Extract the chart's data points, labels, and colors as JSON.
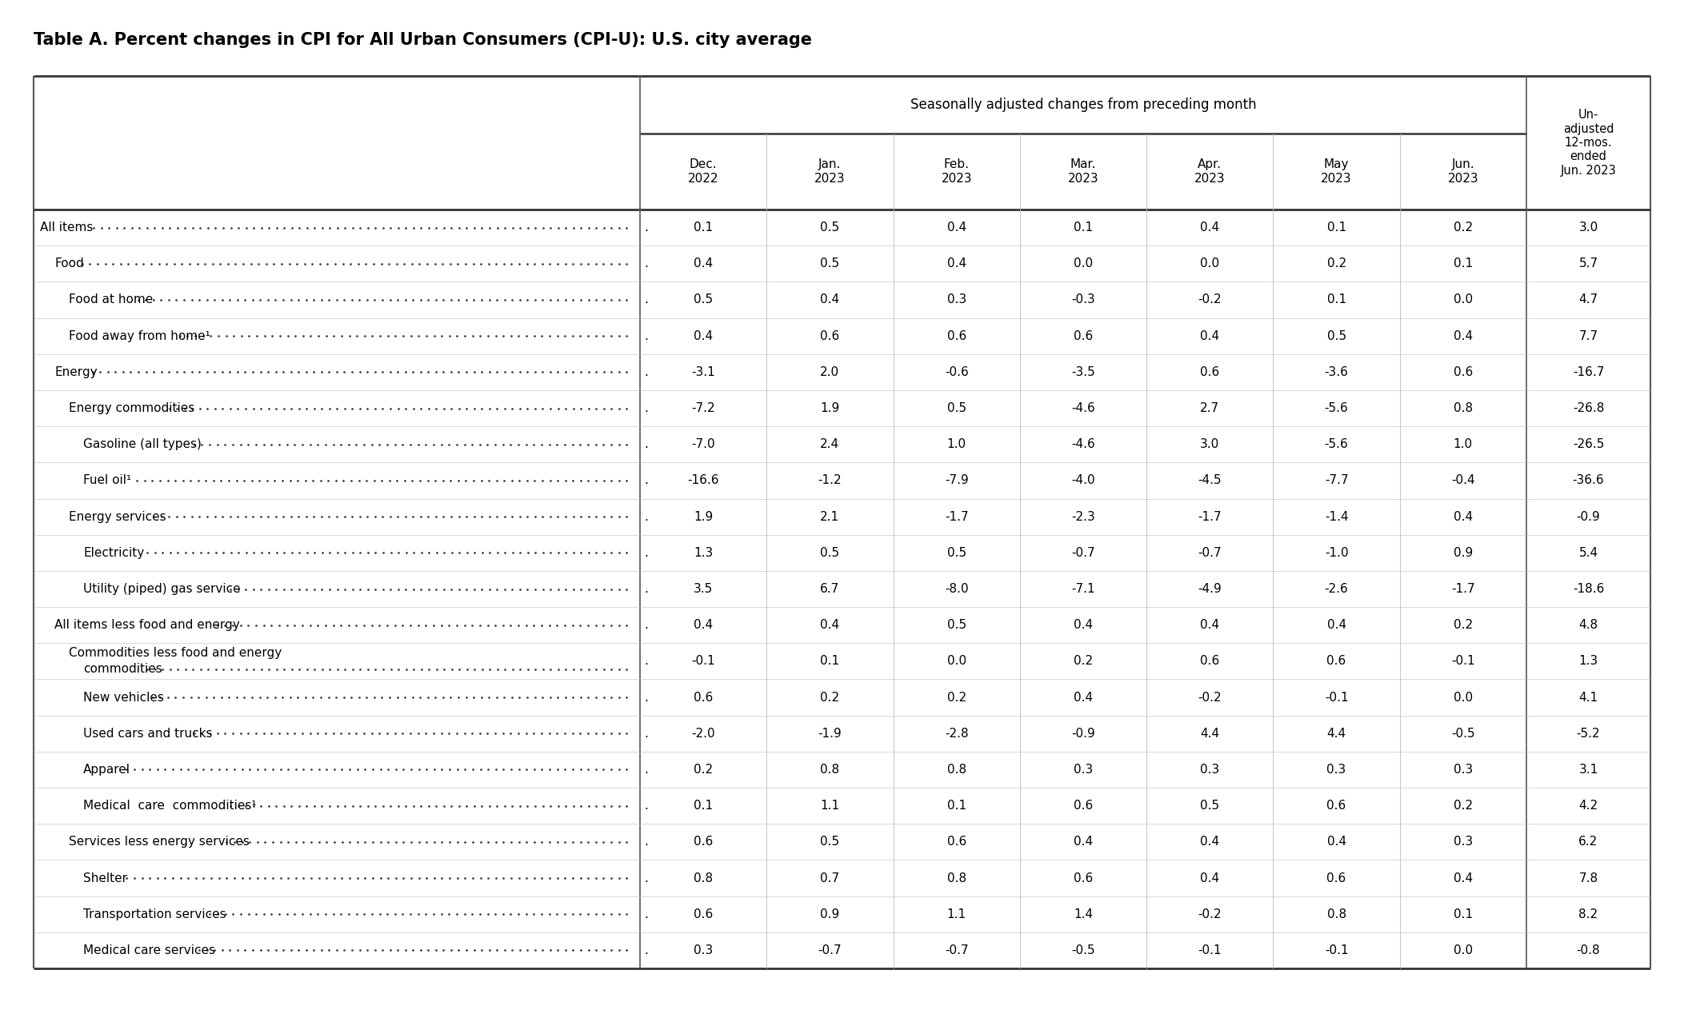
{
  "title": "Table A. Percent changes in CPI for All Urban Consumers (CPI-U): U.S. city average",
  "col_group_header": "Seasonally adjusted changes from preceding month",
  "col_unadj_header": "Un-\nadjusted\n12-mos.\nended\nJun. 2023",
  "col_headers": [
    "Dec.\n2022",
    "Jan.\n2023",
    "Feb.\n2023",
    "Mar.\n2023",
    "Apr.\n2023",
    "May\n2023",
    "Jun.\n2023"
  ],
  "rows": [
    {
      "label": "All items",
      "indent": 0,
      "two_line": false,
      "label2": "",
      "values": [
        0.1,
        0.5,
        0.4,
        0.1,
        0.4,
        0.1,
        0.2,
        3.0
      ]
    },
    {
      "label": "Food",
      "indent": 1,
      "two_line": false,
      "label2": "",
      "values": [
        0.4,
        0.5,
        0.4,
        0.0,
        0.0,
        0.2,
        0.1,
        5.7
      ]
    },
    {
      "label": "Food at home",
      "indent": 2,
      "two_line": false,
      "label2": "",
      "values": [
        0.5,
        0.4,
        0.3,
        -0.3,
        -0.2,
        0.1,
        0.0,
        4.7
      ]
    },
    {
      "label": "Food away from home¹",
      "indent": 2,
      "two_line": false,
      "label2": "",
      "values": [
        0.4,
        0.6,
        0.6,
        0.6,
        0.4,
        0.5,
        0.4,
        7.7
      ]
    },
    {
      "label": "Energy",
      "indent": 1,
      "two_line": false,
      "label2": "",
      "values": [
        -3.1,
        2.0,
        -0.6,
        -3.5,
        0.6,
        -3.6,
        0.6,
        -16.7
      ]
    },
    {
      "label": "Energy commodities",
      "indent": 2,
      "two_line": false,
      "label2": "",
      "values": [
        -7.2,
        1.9,
        0.5,
        -4.6,
        2.7,
        -5.6,
        0.8,
        -26.8
      ]
    },
    {
      "label": "Gasoline (all types)",
      "indent": 3,
      "two_line": false,
      "label2": "",
      "values": [
        -7.0,
        2.4,
        1.0,
        -4.6,
        3.0,
        -5.6,
        1.0,
        -26.5
      ]
    },
    {
      "label": "Fuel oil¹",
      "indent": 3,
      "two_line": false,
      "label2": "",
      "values": [
        -16.6,
        -1.2,
        -7.9,
        -4.0,
        -4.5,
        -7.7,
        -0.4,
        -36.6
      ]
    },
    {
      "label": "Energy services",
      "indent": 2,
      "two_line": false,
      "label2": "",
      "values": [
        1.9,
        2.1,
        -1.7,
        -2.3,
        -1.7,
        -1.4,
        0.4,
        -0.9
      ]
    },
    {
      "label": "Electricity",
      "indent": 3,
      "two_line": false,
      "label2": "",
      "values": [
        1.3,
        0.5,
        0.5,
        -0.7,
        -0.7,
        -1.0,
        0.9,
        5.4
      ]
    },
    {
      "label": "Utility (piped) gas service",
      "indent": 3,
      "two_line": false,
      "label2": "",
      "values": [
        3.5,
        6.7,
        -8.0,
        -7.1,
        -4.9,
        -2.6,
        -1.7,
        -18.6
      ]
    },
    {
      "label": "All items less food and energy",
      "indent": 1,
      "two_line": false,
      "label2": "",
      "values": [
        0.4,
        0.4,
        0.5,
        0.4,
        0.4,
        0.4,
        0.2,
        4.8
      ]
    },
    {
      "label": "Commodities less food and energy",
      "indent": 2,
      "two_line": true,
      "label2": "commodities",
      "values": [
        -0.1,
        0.1,
        0.0,
        0.2,
        0.6,
        0.6,
        -0.1,
        1.3
      ]
    },
    {
      "label": "New vehicles",
      "indent": 3,
      "two_line": false,
      "label2": "",
      "values": [
        0.6,
        0.2,
        0.2,
        0.4,
        -0.2,
        -0.1,
        0.0,
        4.1
      ]
    },
    {
      "label": "Used cars and trucks",
      "indent": 3,
      "two_line": false,
      "label2": "",
      "values": [
        -2.0,
        -1.9,
        -2.8,
        -0.9,
        4.4,
        4.4,
        -0.5,
        -5.2
      ]
    },
    {
      "label": "Apparel",
      "indent": 3,
      "two_line": false,
      "label2": "",
      "values": [
        0.2,
        0.8,
        0.8,
        0.3,
        0.3,
        0.3,
        0.3,
        3.1
      ]
    },
    {
      "label": "Medical  care  commodities¹",
      "indent": 3,
      "two_line": false,
      "label2": "",
      "values": [
        0.1,
        1.1,
        0.1,
        0.6,
        0.5,
        0.6,
        0.2,
        4.2
      ]
    },
    {
      "label": "Services less energy services",
      "indent": 2,
      "two_line": false,
      "label2": "",
      "values": [
        0.6,
        0.5,
        0.6,
        0.4,
        0.4,
        0.4,
        0.3,
        6.2
      ]
    },
    {
      "label": "Shelter",
      "indent": 3,
      "two_line": false,
      "label2": "",
      "values": [
        0.8,
        0.7,
        0.8,
        0.6,
        0.4,
        0.6,
        0.4,
        7.8
      ]
    },
    {
      "label": "Transportation services",
      "indent": 3,
      "two_line": false,
      "label2": "",
      "values": [
        0.6,
        0.9,
        1.1,
        1.4,
        -0.2,
        0.8,
        0.1,
        8.2
      ]
    },
    {
      "label": "Medical care services",
      "indent": 3,
      "two_line": false,
      "label2": "",
      "values": [
        0.3,
        -0.7,
        -0.7,
        -0.5,
        -0.1,
        -0.1,
        0.0,
        -0.8
      ]
    }
  ],
  "bg_color": "#ffffff",
  "text_color": "#000000"
}
